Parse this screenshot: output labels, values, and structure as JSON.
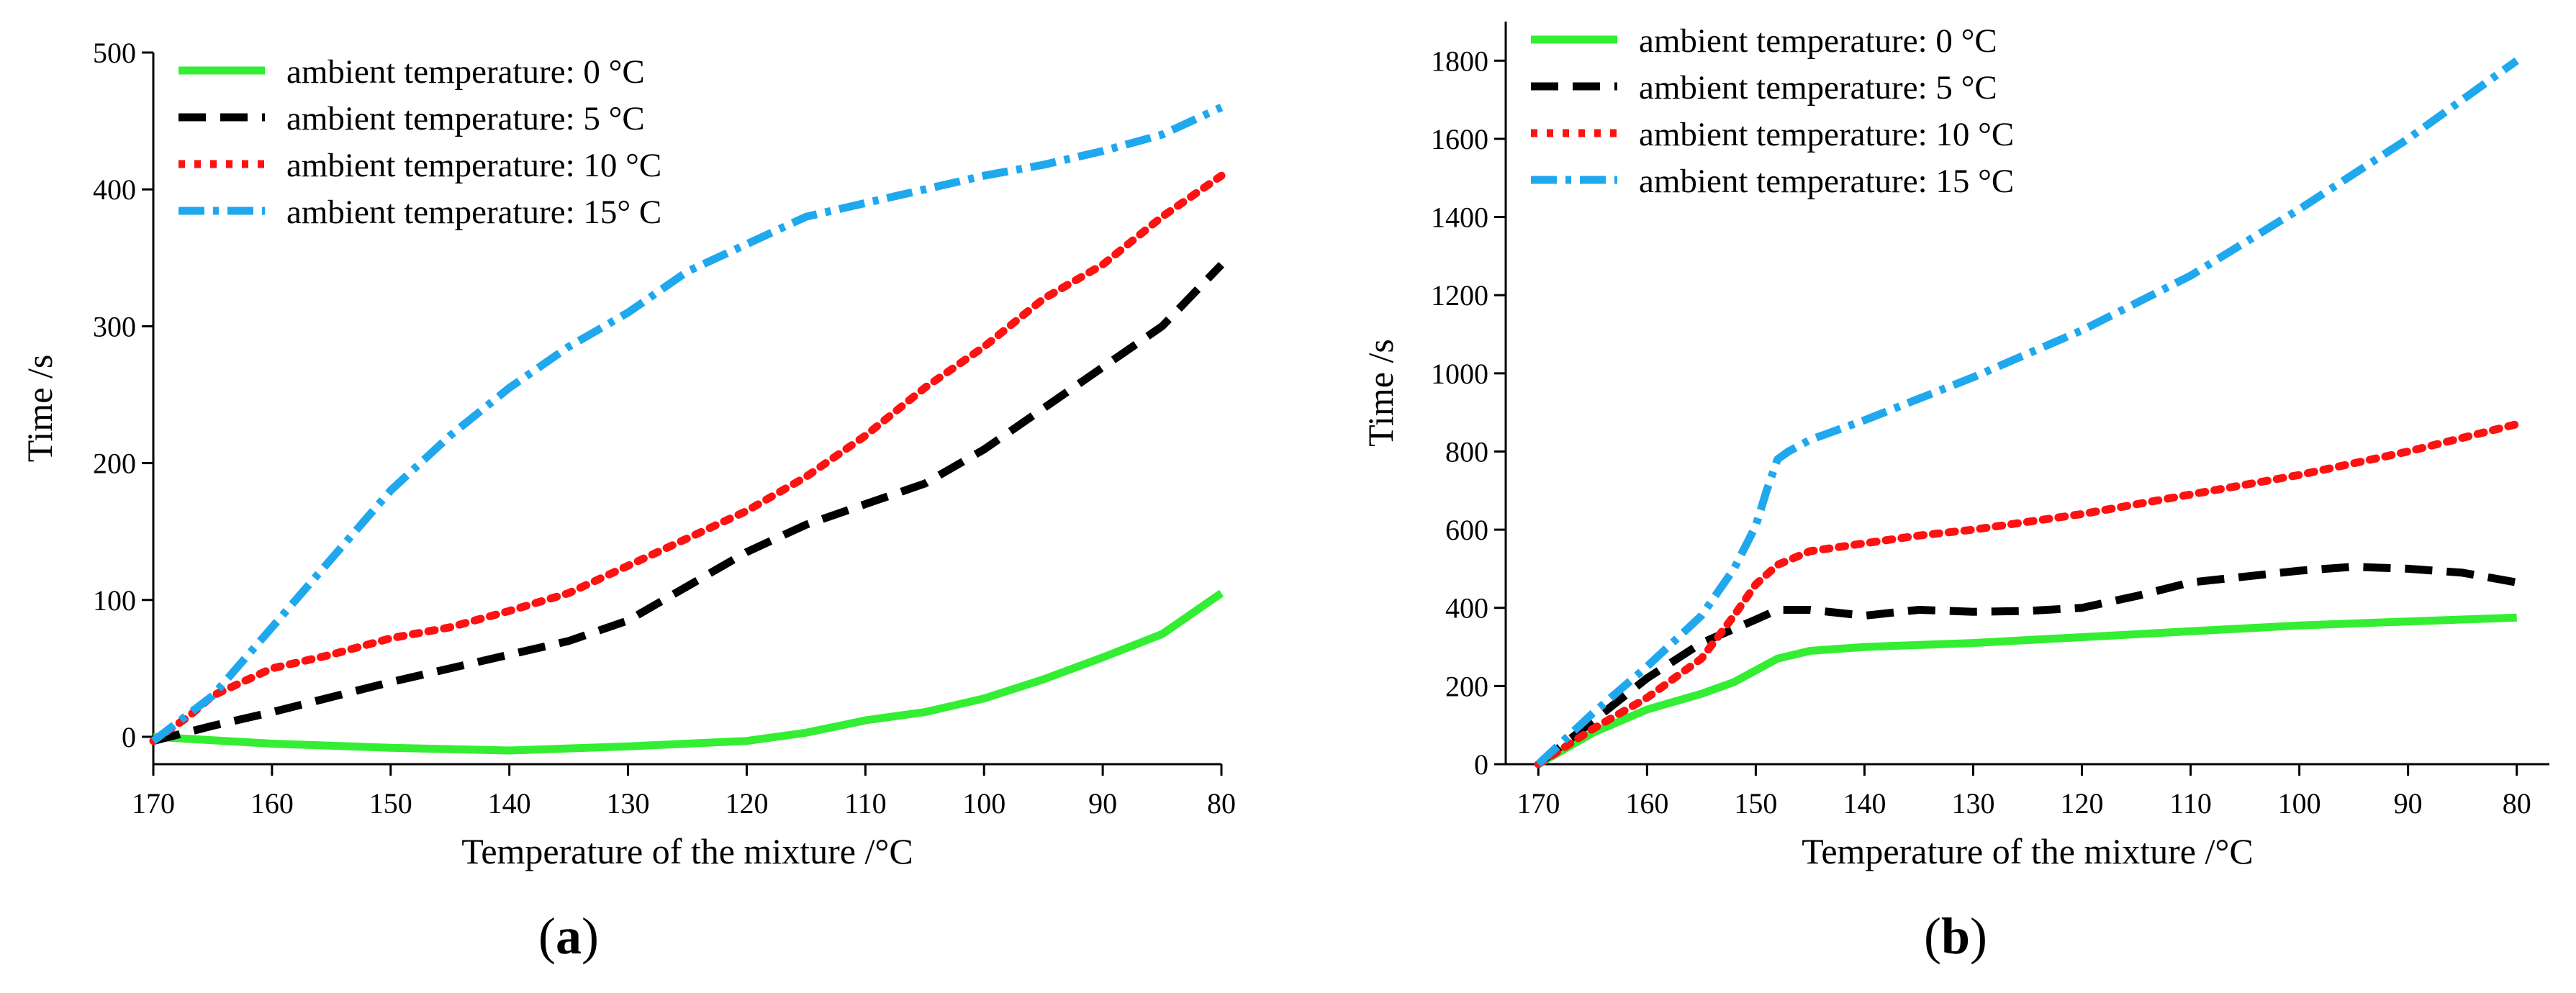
{
  "chart_data": [
    {
      "type": "line",
      "panel": "a",
      "xlabel": "Temperature of the mixture /°C",
      "ylabel": "Time /s",
      "xlim": [
        170,
        80
      ],
      "ylim": [
        -20,
        500
      ],
      "x_ticks": [
        170,
        160,
        150,
        140,
        130,
        120,
        110,
        100,
        90,
        80
      ],
      "y_ticks": [
        0,
        100,
        200,
        300,
        400,
        500
      ],
      "legend_position": "top-left",
      "series": [
        {
          "name": "ambient temperature: 0 °C",
          "color": "#33ee33",
          "style": "solid",
          "points": [
            [
              170,
              0
            ],
            [
              160,
              -5
            ],
            [
              150,
              -8
            ],
            [
              140,
              -10
            ],
            [
              130,
              -7
            ],
            [
              120,
              -3
            ],
            [
              115,
              3
            ],
            [
              110,
              12
            ],
            [
              105,
              18
            ],
            [
              100,
              28
            ],
            [
              95,
              42
            ],
            [
              90,
              58
            ],
            [
              85,
              75
            ],
            [
              80,
              105
            ]
          ]
        },
        {
          "name": "ambient temperature: 5 °C",
          "color": "#000000",
          "style": "dash",
          "points": [
            [
              170,
              -3
            ],
            [
              165,
              8
            ],
            [
              160,
              18
            ],
            [
              150,
              40
            ],
            [
              140,
              60
            ],
            [
              135,
              70
            ],
            [
              130,
              85
            ],
            [
              125,
              110
            ],
            [
              120,
              135
            ],
            [
              115,
              155
            ],
            [
              110,
              170
            ],
            [
              105,
              185
            ],
            [
              100,
              210
            ],
            [
              95,
              240
            ],
            [
              90,
              270
            ],
            [
              85,
              300
            ],
            [
              80,
              345
            ]
          ]
        },
        {
          "name": "ambient temperature: 10 °C",
          "color": "#ff1111",
          "style": "dot",
          "points": [
            [
              170,
              -3
            ],
            [
              167,
              15
            ],
            [
              165,
              30
            ],
            [
              160,
              50
            ],
            [
              155,
              60
            ],
            [
              150,
              72
            ],
            [
              145,
              80
            ],
            [
              140,
              92
            ],
            [
              135,
              105
            ],
            [
              130,
              125
            ],
            [
              125,
              145
            ],
            [
              120,
              165
            ],
            [
              115,
              190
            ],
            [
              110,
              220
            ],
            [
              105,
              255
            ],
            [
              100,
              285
            ],
            [
              95,
              320
            ],
            [
              90,
              345
            ],
            [
              85,
              380
            ],
            [
              80,
              410
            ]
          ]
        },
        {
          "name": "ambient temperature: 15° C",
          "color": "#1fa8ee",
          "style": "dashdot",
          "points": [
            [
              170,
              -3
            ],
            [
              165,
              30
            ],
            [
              160,
              80
            ],
            [
              155,
              130
            ],
            [
              150,
              180
            ],
            [
              145,
              220
            ],
            [
              140,
              255
            ],
            [
              135,
              285
            ],
            [
              130,
              310
            ],
            [
              125,
              340
            ],
            [
              120,
              360
            ],
            [
              115,
              380
            ],
            [
              110,
              390
            ],
            [
              105,
              400
            ],
            [
              100,
              410
            ],
            [
              95,
              418
            ],
            [
              90,
              428
            ],
            [
              85,
              440
            ],
            [
              80,
              460
            ]
          ]
        }
      ]
    },
    {
      "type": "line",
      "panel": "b",
      "xlabel": "Temperature of the mixture /°C",
      "ylabel": "Time /s",
      "xlim": [
        173,
        77
      ],
      "ylim": [
        0,
        1900
      ],
      "x_ticks": [
        170,
        160,
        150,
        140,
        130,
        120,
        110,
        100,
        90,
        80
      ],
      "y_ticks": [
        0,
        200,
        400,
        600,
        800,
        1000,
        1200,
        1400,
        1600,
        1800
      ],
      "legend_position": "top-left",
      "series": [
        {
          "name": "ambient temperature: 0  °C",
          "color": "#33ee33",
          "style": "solid",
          "points": [
            [
              170,
              0
            ],
            [
              165,
              80
            ],
            [
              160,
              140
            ],
            [
              155,
              180
            ],
            [
              152,
              210
            ],
            [
              150,
              240
            ],
            [
              148,
              270
            ],
            [
              145,
              290
            ],
            [
              140,
              300
            ],
            [
              130,
              310
            ],
            [
              120,
              325
            ],
            [
              110,
              340
            ],
            [
              100,
              355
            ],
            [
              90,
              365
            ],
            [
              80,
              375
            ]
          ]
        },
        {
          "name": "ambient temperature: 5 °C",
          "color": "#000000",
          "style": "dash",
          "points": [
            [
              170,
              0
            ],
            [
              165,
              110
            ],
            [
              160,
              220
            ],
            [
              155,
              310
            ],
            [
              150,
              370
            ],
            [
              148,
              395
            ],
            [
              145,
              395
            ],
            [
              140,
              380
            ],
            [
              135,
              395
            ],
            [
              130,
              390
            ],
            [
              125,
              392
            ],
            [
              120,
              400
            ],
            [
              115,
              430
            ],
            [
              110,
              465
            ],
            [
              105,
              480
            ],
            [
              100,
              495
            ],
            [
              95,
              505
            ],
            [
              90,
              500
            ],
            [
              85,
              490
            ],
            [
              80,
              465
            ]
          ]
        },
        {
          "name": "ambient temperature: 10 °C",
          "color": "#ff1111",
          "style": "dot",
          "points": [
            [
              170,
              0
            ],
            [
              165,
              90
            ],
            [
              160,
              170
            ],
            [
              155,
              270
            ],
            [
              152,
              380
            ],
            [
              150,
              460
            ],
            [
              148,
              510
            ],
            [
              145,
              545
            ],
            [
              140,
              565
            ],
            [
              135,
              585
            ],
            [
              130,
              600
            ],
            [
              120,
              640
            ],
            [
              110,
              690
            ],
            [
              100,
              740
            ],
            [
              90,
              800
            ],
            [
              85,
              835
            ],
            [
              80,
              870
            ]
          ]
        },
        {
          "name": "ambient temperature: 15 °C",
          "color": "#1fa8ee",
          "style": "dashdot",
          "points": [
            [
              170,
              0
            ],
            [
              165,
              130
            ],
            [
              160,
              250
            ],
            [
              155,
              380
            ],
            [
              152,
              500
            ],
            [
              150,
              610
            ],
            [
              149,
              700
            ],
            [
              148,
              780
            ],
            [
              147,
              800
            ],
            [
              145,
              830
            ],
            [
              140,
              880
            ],
            [
              130,
              990
            ],
            [
              120,
              1110
            ],
            [
              110,
              1250
            ],
            [
              100,
              1420
            ],
            [
              90,
              1600
            ],
            [
              80,
              1800
            ]
          ]
        }
      ]
    }
  ],
  "panel_labels": [
    {
      "open": "(",
      "letter": "a",
      "close": ")"
    },
    {
      "open": "(",
      "letter": "b",
      "close": ")"
    }
  ]
}
